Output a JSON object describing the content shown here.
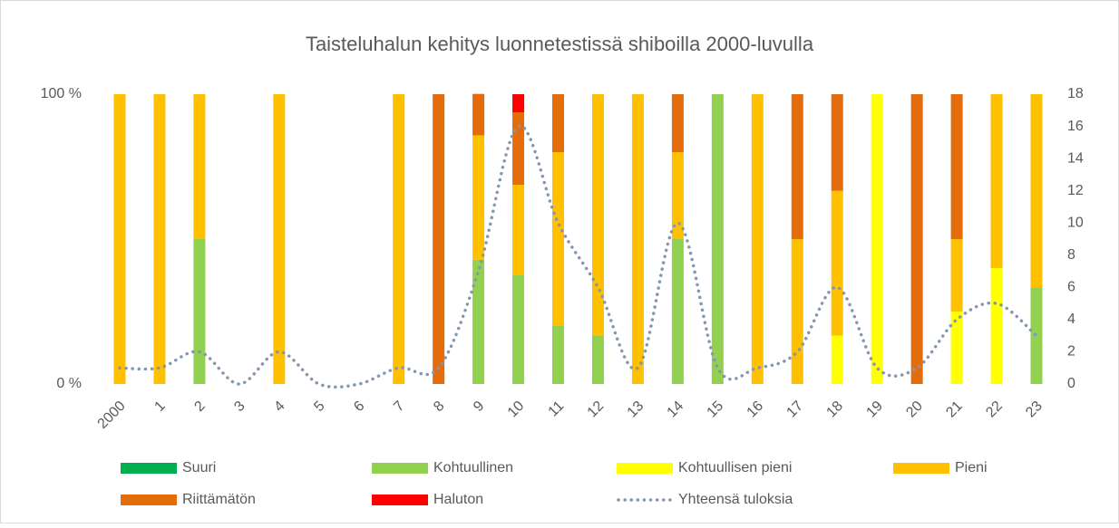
{
  "chart_data": {
    "type": "bar",
    "stacked": true,
    "title": "Taisteluhalun kehitys luonnetestissä shiboilla 2000-luvulla",
    "categories": [
      "2000",
      "1",
      "2",
      "3",
      "4",
      "5",
      "6",
      "7",
      "8",
      "9",
      "10",
      "11",
      "12",
      "13",
      "14",
      "15",
      "16",
      "17",
      "18",
      "19",
      "20",
      "21",
      "22",
      "23"
    ],
    "series": [
      {
        "name": "Suuri",
        "color": "#00b050",
        "values": [
          0,
          0,
          0,
          0,
          0,
          0,
          0,
          0,
          0,
          0,
          0,
          0,
          0,
          0,
          0,
          0,
          0,
          0,
          0,
          0,
          0,
          0,
          0,
          0
        ]
      },
      {
        "name": "Kohtuullinen",
        "color": "#92d050",
        "values": [
          0,
          0,
          50,
          0,
          0,
          0,
          0,
          0,
          0,
          42.9,
          37.5,
          20,
          16.7,
          0,
          50,
          100,
          0,
          0,
          0,
          0,
          0,
          0,
          0,
          33.3
        ]
      },
      {
        "name": "Kohtuullisen pieni",
        "color": "#ffff00",
        "values": [
          0,
          0,
          0,
          0,
          0,
          0,
          0,
          0,
          0,
          0,
          0,
          0,
          0,
          0,
          0,
          0,
          0,
          0,
          16.7,
          100,
          0,
          25,
          40,
          0
        ]
      },
      {
        "name": "Pieni",
        "color": "#ffc000",
        "values": [
          100,
          100,
          50,
          0,
          100,
          0,
          0,
          100,
          0,
          42.9,
          31.25,
          60,
          83.3,
          100,
          30,
          0,
          100,
          50,
          50,
          0,
          0,
          25,
          60,
          66.7
        ]
      },
      {
        "name": "Riittämätön",
        "color": "#e46c0a",
        "values": [
          0,
          0,
          0,
          0,
          0,
          0,
          0,
          0,
          100,
          14.3,
          25,
          20,
          0,
          0,
          20,
          0,
          0,
          50,
          33.3,
          0,
          100,
          50,
          0,
          0
        ]
      },
      {
        "name": "Haluton",
        "color": "#ff0000",
        "values": [
          0,
          0,
          0,
          0,
          0,
          0,
          0,
          0,
          0,
          0,
          6.25,
          0,
          0,
          0,
          0,
          0,
          0,
          0,
          0,
          0,
          0,
          0,
          0,
          0
        ]
      },
      {
        "name": "Yhteensä tuloksia",
        "color": "#8496b0",
        "type": "line",
        "axis": "y2",
        "values": [
          1,
          1,
          2,
          0,
          2,
          0,
          0,
          1,
          1,
          7,
          16,
          10,
          6,
          1,
          10,
          1,
          1,
          2,
          6,
          1,
          1,
          4,
          5,
          3
        ]
      }
    ],
    "ylim": [
      0,
      100
    ],
    "yticks": [
      {
        "value": 0,
        "label": "0 %"
      },
      {
        "value": 100,
        "label": "100 %"
      }
    ],
    "y2lim": [
      0,
      18
    ],
    "y2ticks": [
      0,
      2,
      4,
      6,
      8,
      10,
      12,
      14,
      16,
      18
    ],
    "grid": false,
    "legend": "bottom"
  }
}
